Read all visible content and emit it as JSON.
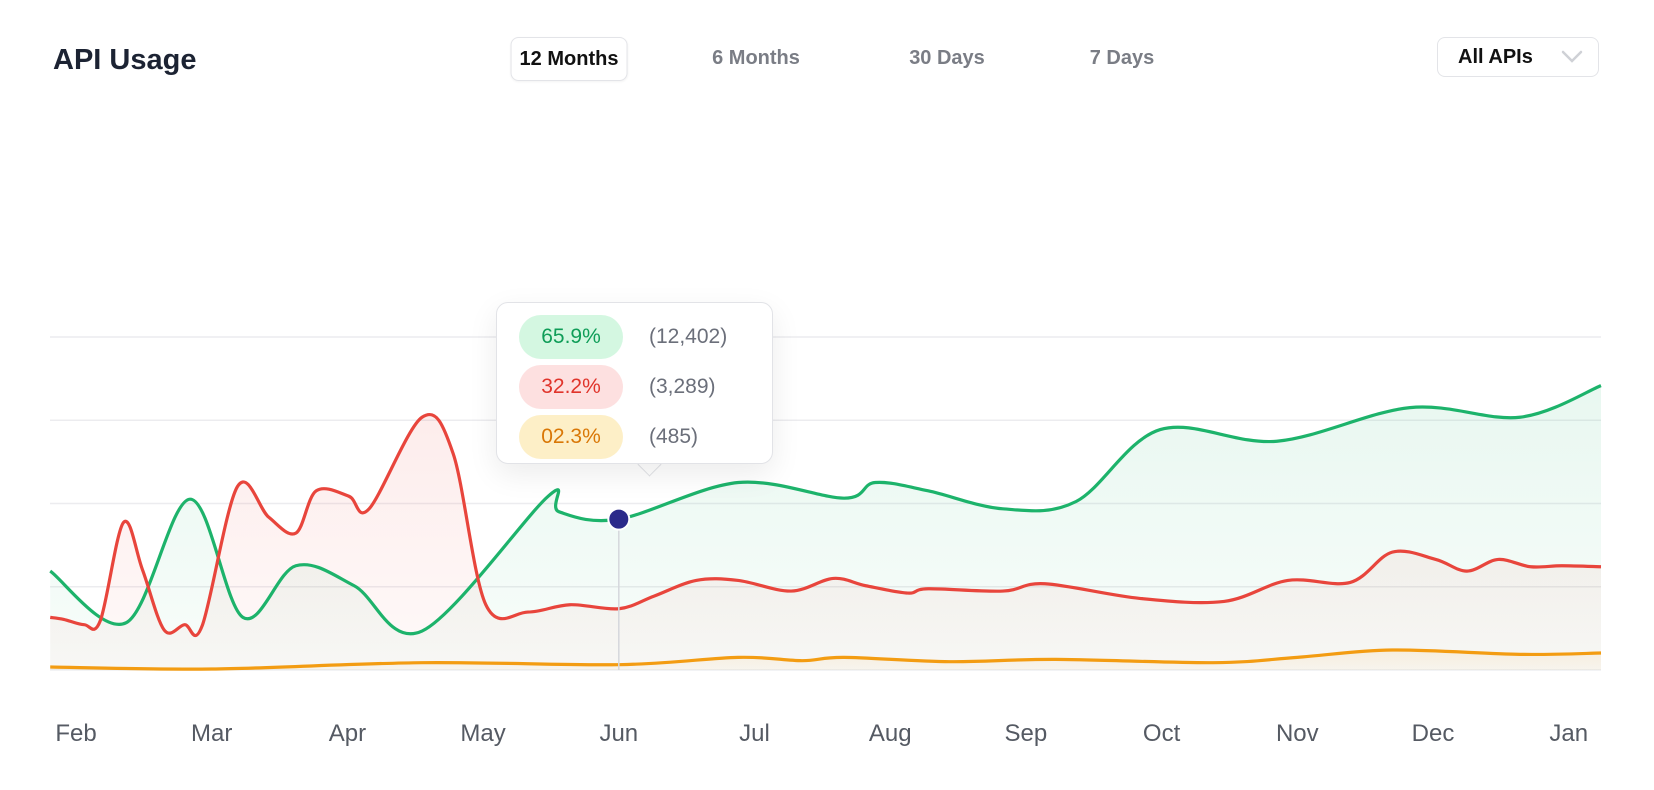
{
  "header": {
    "title": "API Usage",
    "tabs": [
      {
        "label": "12 Months",
        "active": true
      },
      {
        "label": "6 Months"
      },
      {
        "label": "30 Days"
      },
      {
        "label": "7 Days"
      }
    ],
    "filter": {
      "label": "All APIs",
      "icon": "chevron-down-icon"
    }
  },
  "tooltip": {
    "rows": [
      {
        "percent": "65.9%",
        "count": "(12,402)",
        "color": "#0f9d58",
        "bg": "#d4f7e1"
      },
      {
        "percent": "32.2%",
        "count": "(3,289)",
        "color": "#e0342b",
        "bg": "#fde0e0"
      },
      {
        "percent": "02.3%",
        "count": "(485)",
        "color": "#d97706",
        "bg": "#fdefc7"
      }
    ]
  },
  "chart_data": {
    "type": "line",
    "categories": [
      "Feb",
      "Mar",
      "Apr",
      "May",
      "Jun",
      "Jul",
      "Aug",
      "Sep",
      "Oct",
      "Nov",
      "Dec",
      "Jan"
    ],
    "ylim": [
      0,
      100
    ],
    "grid": true,
    "highlight_index": 4,
    "series": [
      {
        "color": "#1db36b",
        "x": [
          -0.19,
          0.37,
          0.84,
          1.23,
          1.62,
          2.05,
          2.55,
          3.48,
          3.56,
          4.0,
          4.88,
          5.66,
          5.89,
          6.28,
          6.83,
          7.37,
          7.99,
          8.85,
          9.83,
          10.64,
          11.24
        ],
        "y": [
          29.7,
          14.2,
          51.3,
          15.8,
          31.3,
          25.3,
          11.7,
          52.2,
          47.5,
          45.3,
          56.3,
          51.6,
          56.3,
          53.8,
          48.4,
          50.6,
          72.2,
          68.7,
          78.8,
          75.9,
          85.4
        ]
      },
      {
        "color": "#e8453c",
        "x": [
          -0.19,
          -0.09,
          0.06,
          0.18,
          0.35,
          0.49,
          0.65,
          0.8,
          0.93,
          1.19,
          1.42,
          1.62,
          1.77,
          2.01,
          2.16,
          2.55,
          2.78,
          3.02,
          3.33,
          3.64,
          4.0,
          4.26,
          4.57,
          4.88,
          5.27,
          5.58,
          5.82,
          6.13,
          6.28,
          6.83,
          7.14,
          7.84,
          8.46,
          8.93,
          9.39,
          9.7,
          10.02,
          10.25,
          10.48,
          10.72,
          10.95,
          11.24
        ],
        "y": [
          15.8,
          15.2,
          13.6,
          14.9,
          44.3,
          30.1,
          12.0,
          13.6,
          13.3,
          55.1,
          45.9,
          41.1,
          53.8,
          52.2,
          48.4,
          75.9,
          64.9,
          19.6,
          17.4,
          19.6,
          18.4,
          22.2,
          26.9,
          26.9,
          23.7,
          27.5,
          25.3,
          23.1,
          24.4,
          23.7,
          25.9,
          21.5,
          20.6,
          26.9,
          26.3,
          35.4,
          33.2,
          29.7,
          33.2,
          31.0,
          31.3,
          31.0
        ]
      },
      {
        "color": "#f39c12",
        "x": [
          -0.19,
          1.0,
          2.55,
          4.0,
          4.88,
          5.35,
          5.66,
          6.44,
          7.22,
          8.38,
          9.0,
          9.7,
          10.64,
          11.24
        ],
        "y": [
          0.9,
          0.3,
          2.2,
          1.6,
          3.8,
          2.8,
          3.8,
          2.5,
          3.2,
          2.2,
          3.8,
          6.0,
          4.7,
          5.1
        ]
      }
    ]
  }
}
